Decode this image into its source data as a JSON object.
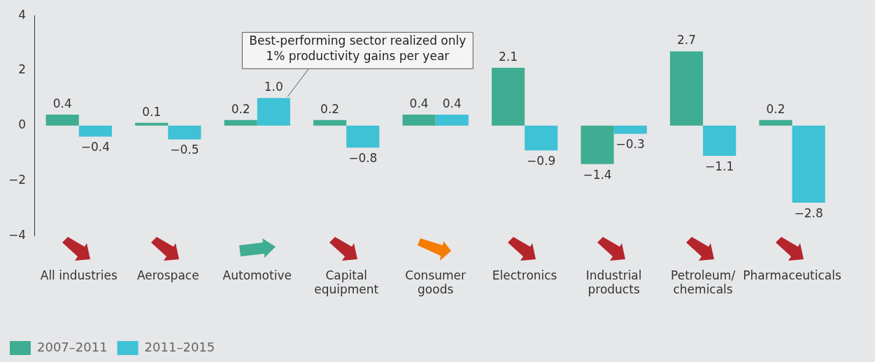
{
  "chart_data": {
    "type": "bar",
    "categories": [
      "All industries",
      "Aerospace",
      "Automotive",
      "Capital equipment",
      "Consumer goods",
      "Electronics",
      "Industrial products",
      "Petroleum/chemicals",
      "Pharmaceuticals"
    ],
    "series": [
      {
        "name": "2007–2011",
        "color": "#3fad91",
        "values": [
          0.4,
          0.1,
          0.2,
          0.2,
          0.4,
          2.1,
          -1.4,
          2.7,
          0.2
        ],
        "value_labels": [
          "0.4",
          "0.1",
          "0.2",
          "0.2",
          "0.4",
          "2.1",
          "−1.4",
          "2.7",
          "0.2"
        ]
      },
      {
        "name": "2011–2015",
        "color": "#3fc1d6",
        "values": [
          -0.4,
          -0.5,
          1.0,
          -0.8,
          0.4,
          -0.9,
          -0.3,
          -1.1,
          -2.8
        ],
        "value_labels": [
          "−0.4",
          "−0.5",
          "1.0",
          "−0.8",
          "0.4",
          "−0.9",
          "−0.3",
          "−1.1",
          "−2.8"
        ]
      }
    ],
    "ylim": [
      -4,
      4
    ],
    "yticks": [
      {
        "value": -4,
        "label": "−4"
      },
      {
        "value": -2,
        "label": "−2"
      },
      0,
      2,
      4
    ],
    "grid": false,
    "legend": "bottom left",
    "annotations": [
      {
        "text": "Best-performing sector realized only 1% productivity gains per year",
        "x": "Automotive",
        "y": 1.0
      }
    ]
  }
}
